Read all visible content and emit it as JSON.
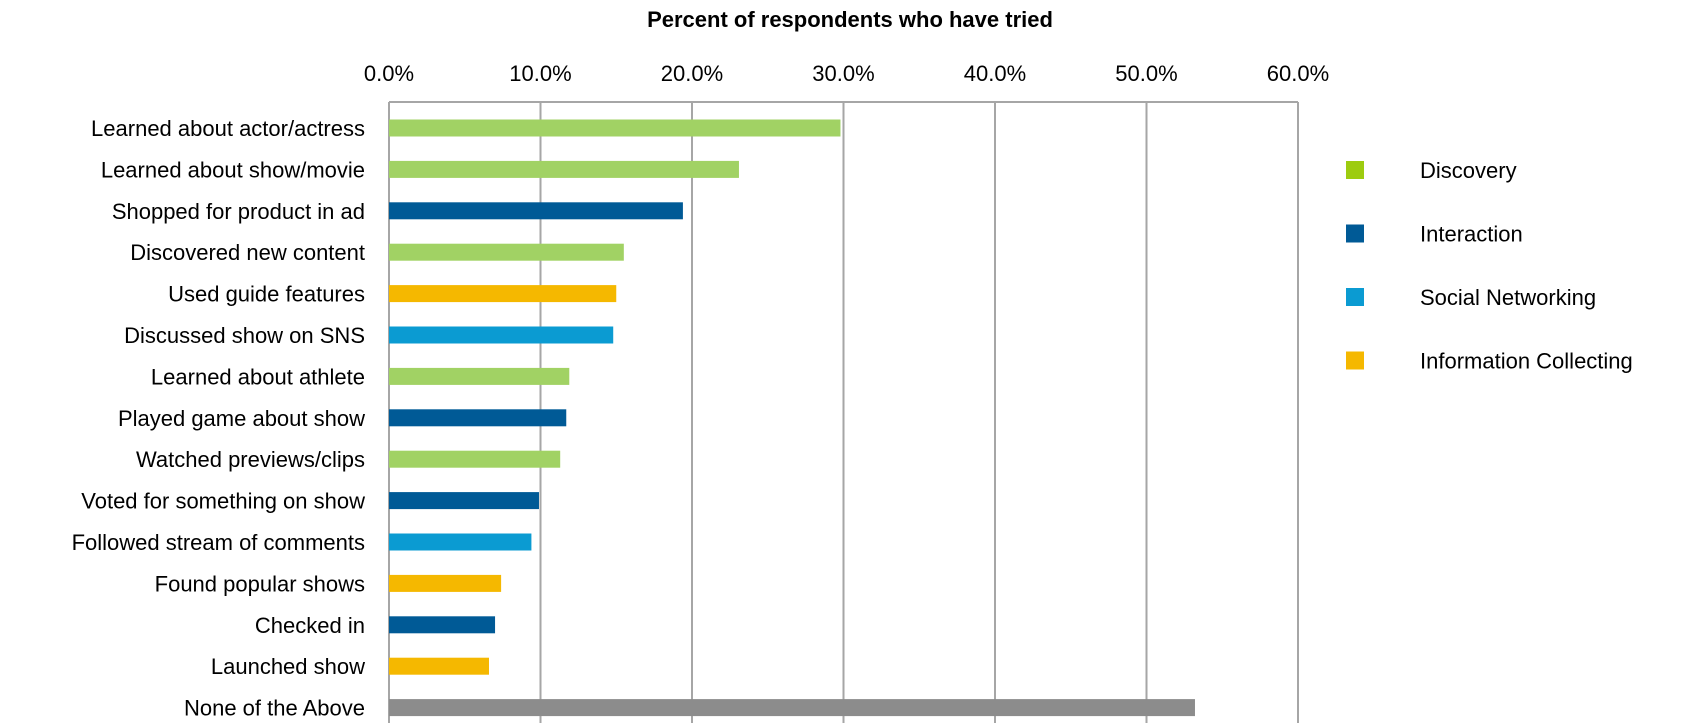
{
  "chart_data": {
    "type": "bar",
    "orientation": "horizontal",
    "title": "Percent of respondents who have tried",
    "xlim": [
      0,
      60
    ],
    "x_ticks": [
      "0.0%",
      "10.0%",
      "20.0%",
      "30.0%",
      "40.0%",
      "50.0%",
      "60.0%"
    ],
    "tick_values": [
      0,
      10,
      20,
      30,
      40,
      50,
      60
    ],
    "grid": true,
    "legend_position": "right",
    "legend": [
      {
        "name": "Discovery",
        "color": "#9dcc0f"
      },
      {
        "name": "Interaction",
        "color": "#005a96"
      },
      {
        "name": "Social Networking",
        "color": "#0b9bd2"
      },
      {
        "name": "Information Collecting",
        "color": "#f5b800"
      }
    ],
    "bars": [
      {
        "label": "Learned about actor/actress",
        "value": 29.8,
        "color": "#a1d264"
      },
      {
        "label": "Learned about show/movie",
        "value": 23.1,
        "color": "#a1d264"
      },
      {
        "label": "Shopped for product in ad",
        "value": 19.4,
        "color": "#005a96"
      },
      {
        "label": "Discovered new content",
        "value": 15.5,
        "color": "#a1d264"
      },
      {
        "label": "Used guide features",
        "value": 15.0,
        "color": "#f5b800"
      },
      {
        "label": "Discussed show on SNS",
        "value": 14.8,
        "color": "#0b9bd2"
      },
      {
        "label": "Learned about athlete",
        "value": 11.9,
        "color": "#a1d264"
      },
      {
        "label": "Played game about show",
        "value": 11.7,
        "color": "#005a96"
      },
      {
        "label": "Watched previews/clips",
        "value": 11.3,
        "color": "#a1d264"
      },
      {
        "label": "Voted for something on show",
        "value": 9.9,
        "color": "#005a96"
      },
      {
        "label": "Followed stream of comments",
        "value": 9.4,
        "color": "#0b9bd2"
      },
      {
        "label": "Found popular shows",
        "value": 7.4,
        "color": "#f5b800"
      },
      {
        "label": "Checked in",
        "value": 7.0,
        "color": "#005a96"
      },
      {
        "label": "Launched show",
        "value": 6.6,
        "color": "#f5b800"
      },
      {
        "label": "None of the Above",
        "value": 53.2,
        "color": "#8c8c8c"
      }
    ]
  }
}
